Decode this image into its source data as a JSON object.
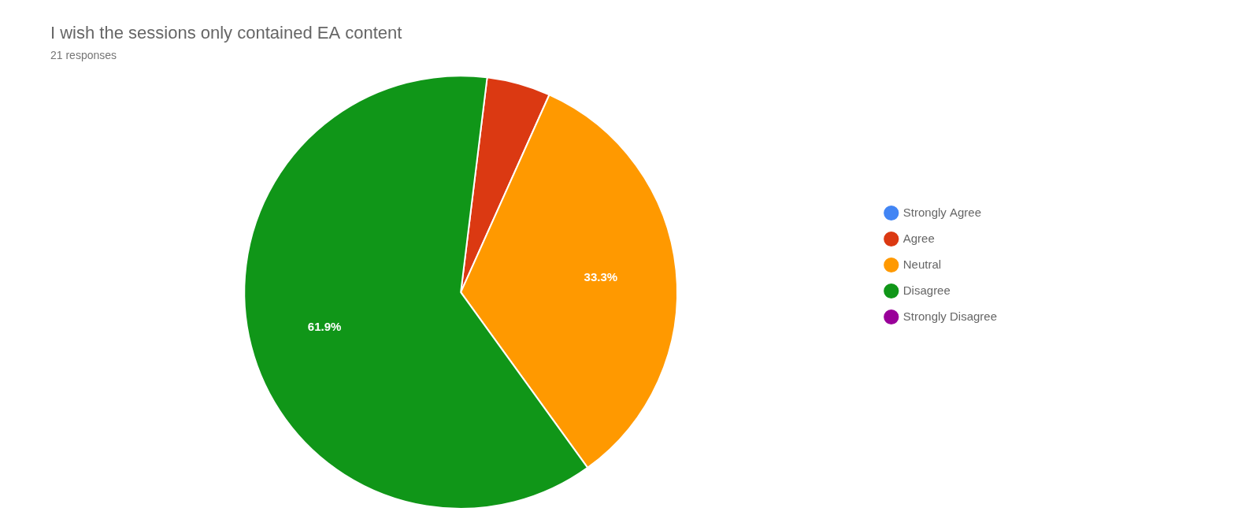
{
  "chart_data": {
    "type": "pie",
    "title": "I wish the sessions only contained EA content",
    "subtitle": "21 responses",
    "categories": [
      "Strongly Agree",
      "Agree",
      "Neutral",
      "Disagree",
      "Strongly Disagree"
    ],
    "values": [
      0.0,
      4.761904762,
      33.333333333,
      61.904761905,
      0.0
    ],
    "colors": [
      "#4285F4",
      "#DB3912",
      "#FF9900",
      "#109618",
      "#990099"
    ],
    "data_labels": true,
    "value_labels": [
      null,
      null,
      "33.3%",
      "61.9%",
      null
    ],
    "legend": "right"
  }
}
